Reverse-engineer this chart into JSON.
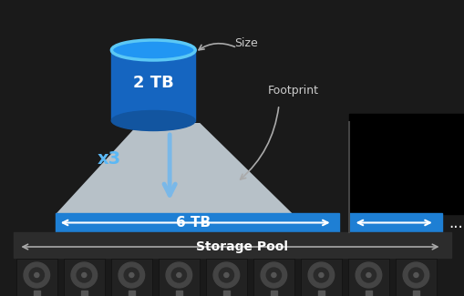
{
  "bg_color": "#1a1a1a",
  "left_panel_bg": "#1a1a1a",
  "right_panel_bg": "#000000",
  "cylinder_color_top": "#1e90ff",
  "cylinder_color_body": "#1565c0",
  "cylinder_edge": "#4fc3f7",
  "cone_color": "#d0dce8",
  "blue_bar_color": "#1e7fd4",
  "dark_bar_color": "#2a2a2a",
  "text_color_white": "#ffffff",
  "text_color_light": "#cccccc",
  "text_color_blue": "#5bb8f5",
  "arrow_color": "#7ab3d4",
  "title": "2 TB",
  "footprint_label": "6 TB",
  "multiplier": "x3",
  "size_label": "Size",
  "footprint_text": "Footprint",
  "pool_label": "Storage Pool",
  "dots": "..."
}
